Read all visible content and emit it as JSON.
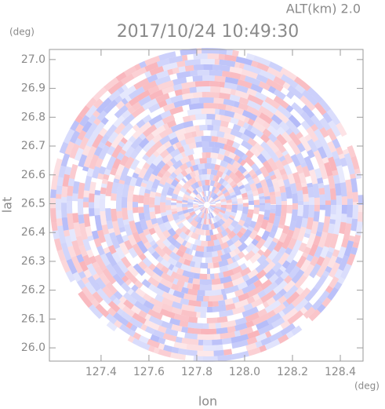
{
  "chart_data": {
    "type": "radar-ppi",
    "title": "2017/10/24 10:49:30",
    "subtitle": "ALT(km) 2.0",
    "x_label": "lon",
    "y_label": "lat",
    "x_unit": "(deg)",
    "y_unit": "(deg)",
    "xlim": [
      127.184,
      128.495
    ],
    "ylim": [
      25.954,
      27.035
    ],
    "xticks": [
      127.4,
      127.6,
      127.8,
      {
        "value": 128,
        "label": "128.0"
      },
      128.2,
      128.4
    ],
    "yticks": [
      {
        "value": 26,
        "label": "26.0"
      },
      26.1,
      26.2,
      26.3,
      26.4,
      26.5,
      26.6,
      26.7,
      26.8,
      26.9,
      {
        "value": 27,
        "label": "27.0"
      }
    ]
  }
}
